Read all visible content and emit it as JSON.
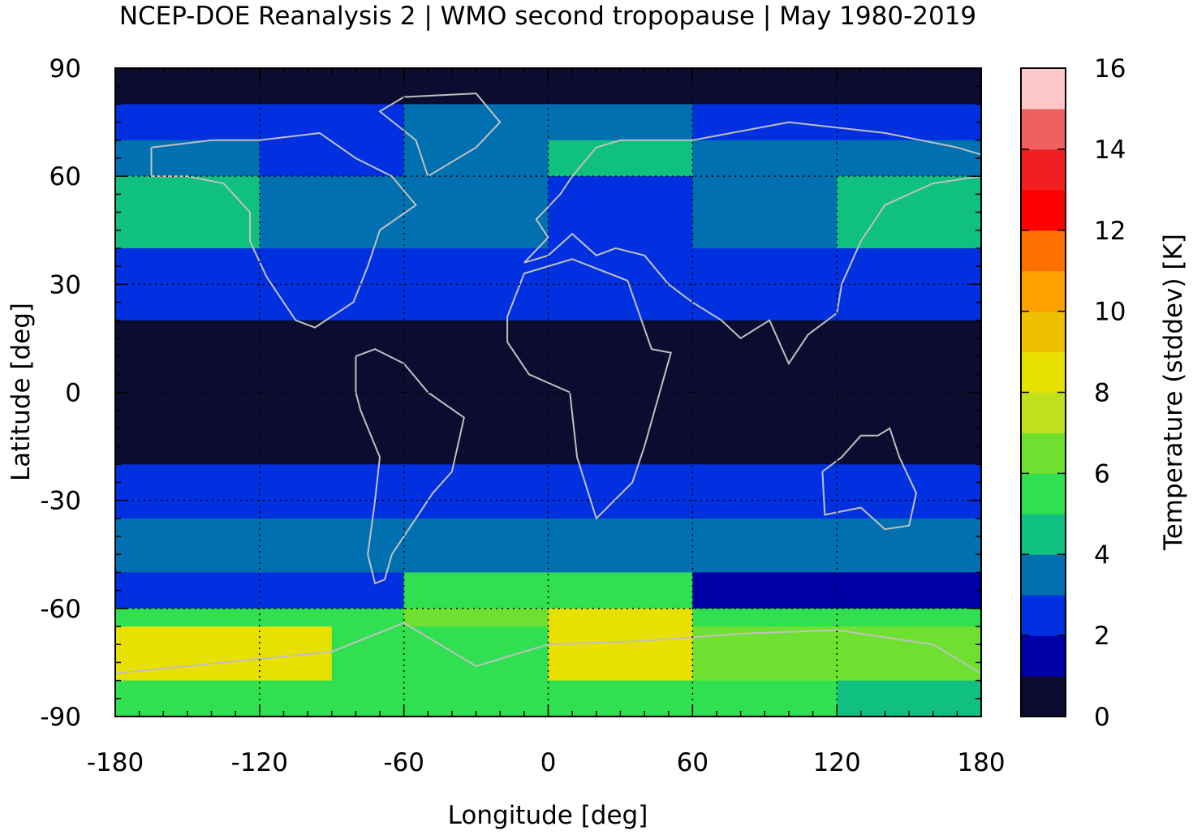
{
  "chart_data": {
    "type": "heatmap",
    "title": "NCEP-DOE Reanalysis 2 | WMO second tropopause | May 1980-2019",
    "xlabel": "Longitude [deg]",
    "ylabel": "Latitude [deg]",
    "colorbar_label": "Temperature (stddev) [K]",
    "xlim": [
      -180,
      180
    ],
    "ylim": [
      -90,
      90
    ],
    "x_ticks": [
      "-180",
      "-120",
      "-60",
      "0",
      "60",
      "120",
      "180"
    ],
    "y_ticks": [
      "90",
      "60",
      "30",
      "0",
      "-30",
      "-60",
      "-90"
    ],
    "colorbar_ticks": [
      "16",
      "14",
      "12",
      "10",
      "8",
      "6",
      "4",
      "2",
      "0"
    ],
    "colorbar_range": [
      0,
      16
    ],
    "colorbar_step": 1,
    "palette": [
      "#0c0c30",
      "#0000a8",
      "#0030e0",
      "#0070b0",
      "#10c080",
      "#30e050",
      "#70e030",
      "#c0e020",
      "#e8e000",
      "#f0c000",
      "#ffa000",
      "#ff7000",
      "#ff0000",
      "#f02020",
      "#f06060",
      "#ffc8c8"
    ],
    "grid": true,
    "grid_style": "dotted",
    "coastlines": true,
    "coastline_color": "#c0c0c0",
    "background_color": "#0c0c30",
    "data": {
      "description_units": "temperature stddev [K] by latitude band and longitude",
      "lat_bands": [
        {
          "lat": [
            80,
            90
          ],
          "lon_values": [
            [
              -180,
              180,
              0.5
            ]
          ]
        },
        {
          "lat": [
            70,
            80
          ],
          "lon_values": [
            [
              -180,
              -120,
              2.5
            ],
            [
              -120,
              -60,
              2.5
            ],
            [
              -60,
              0,
              3.5
            ],
            [
              0,
              60,
              3.5
            ],
            [
              60,
              120,
              2.5
            ],
            [
              120,
              180,
              2.5
            ]
          ]
        },
        {
          "lat": [
            60,
            70
          ],
          "lon_values": [
            [
              -180,
              -120,
              3.5
            ],
            [
              -120,
              -60,
              2.5
            ],
            [
              -60,
              0,
              3.5
            ],
            [
              0,
              60,
              4.5
            ],
            [
              60,
              120,
              3.5
            ],
            [
              120,
              180,
              3.5
            ]
          ]
        },
        {
          "lat": [
            40,
            60
          ],
          "lon_values": [
            [
              -180,
              -120,
              4.5
            ],
            [
              -120,
              -60,
              3.5
            ],
            [
              -60,
              0,
              3.5
            ],
            [
              0,
              60,
              2.5
            ],
            [
              60,
              120,
              3.5
            ],
            [
              120,
              180,
              4.5
            ]
          ]
        },
        {
          "lat": [
            30,
            40
          ],
          "lon_values": [
            [
              -180,
              180,
              2.5
            ]
          ]
        },
        {
          "lat": [
            20,
            30
          ],
          "lon_values": [
            [
              -180,
              180,
              2.5
            ]
          ]
        },
        {
          "lat": [
            -20,
            20
          ],
          "lon_values": [
            [
              -180,
              180,
              0.5
            ]
          ]
        },
        {
          "lat": [
            -35,
            -20
          ],
          "lon_values": [
            [
              -180,
              180,
              2.5
            ]
          ]
        },
        {
          "lat": [
            -50,
            -35
          ],
          "lon_values": [
            [
              -180,
              -60,
              3.5
            ],
            [
              -60,
              60,
              3.5
            ],
            [
              60,
              180,
              3.5
            ]
          ]
        },
        {
          "lat": [
            -60,
            -50
          ],
          "lon_values": [
            [
              -180,
              -60,
              2.5
            ],
            [
              -60,
              60,
              5.5
            ],
            [
              60,
              180,
              1.5
            ]
          ]
        },
        {
          "lat": [
            -65,
            -60
          ],
          "lon_values": [
            [
              -180,
              -60,
              5.5
            ],
            [
              -60,
              0,
              6.5
            ],
            [
              0,
              60,
              8.5
            ],
            [
              60,
              180,
              5.5
            ]
          ]
        },
        {
          "lat": [
            -80,
            -65
          ],
          "lon_values": [
            [
              -180,
              -90,
              8.5
            ],
            [
              -90,
              0,
              5.5
            ],
            [
              0,
              60,
              8.5
            ],
            [
              60,
              180,
              6.5
            ]
          ]
        },
        {
          "lat": [
            -90,
            -80
          ],
          "lon_values": [
            [
              -180,
              -60,
              5.5
            ],
            [
              -60,
              120,
              5.5
            ],
            [
              120,
              180,
              4.5
            ]
          ]
        }
      ]
    }
  }
}
